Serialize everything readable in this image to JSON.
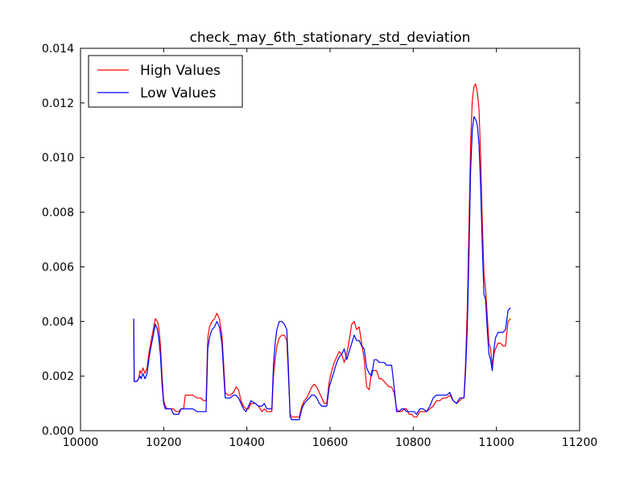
{
  "chart_data": {
    "type": "line",
    "title": "check_may_6th_stationary_std_deviation",
    "xlabel": "",
    "ylabel": "",
    "xlim": [
      10000,
      11200
    ],
    "ylim": [
      0.0,
      0.014
    ],
    "xticks": [
      "10000",
      "10200",
      "10400",
      "10600",
      "10800",
      "11000",
      "11200"
    ],
    "yticks": [
      "0.000",
      "0.002",
      "0.004",
      "0.006",
      "0.008",
      "0.010",
      "0.012",
      "0.014"
    ],
    "grid": false,
    "legend_position": "top-left",
    "series": [
      {
        "name": "High Values",
        "color": "#ff0000",
        "x": [
          10128,
          10129,
          10131,
          10135,
          10140,
          10143,
          10146,
          10150,
          10155,
          10160,
          10165,
          10170,
          10175,
          10180,
          10185,
          10188,
          10192,
          10196,
          10200,
          10204,
          10208,
          10212,
          10218,
          10224,
          10230,
          10236,
          10242,
          10248,
          10252,
          10260,
          10270,
          10280,
          10290,
          10296,
          10302,
          10306,
          10310,
          10316,
          10322,
          10328,
          10334,
          10340,
          10344,
          10348,
          10354,
          10360,
          10368,
          10374,
          10380,
          10386,
          10392,
          10398,
          10404,
          10410,
          10420,
          10428,
          10436,
          10442,
          10448,
          10454,
          10460,
          10464,
          10468,
          10472,
          10478,
          10484,
          10490,
          10496,
          10500,
          10504,
          10508,
          10514,
          10520,
          10526,
          10532,
          10538,
          10544,
          10550,
          10556,
          10562,
          10568,
          10574,
          10580,
          10586,
          10592,
          10598,
          10604,
          10610,
          10616,
          10622,
          10628,
          10634,
          10640,
          10646,
          10652,
          10658,
          10664,
          10670,
          10676,
          10682,
          10688,
          10694,
          10700,
          10706,
          10712,
          10718,
          10724,
          10730,
          10736,
          10742,
          10748,
          10754,
          10760,
          10766,
          10772,
          10778,
          10784,
          10790,
          10796,
          10802,
          10808,
          10816,
          10824,
          10832,
          10840,
          10848,
          10856,
          10864,
          10872,
          10880,
          10888,
          10896,
          10904,
          10912,
          10918,
          10922,
          10926,
          10930,
          10934,
          10938,
          10942,
          10946,
          10950,
          10954,
          10958,
          10962,
          10966,
          10970,
          10974,
          10978,
          10982,
          10986,
          10990,
          10994,
          10998,
          11004,
          11010,
          11016,
          11022,
          11028,
          11034
        ],
        "y": [
          0.0041,
          0.0018,
          0.0018,
          0.0018,
          0.0019,
          0.0022,
          0.0021,
          0.0023,
          0.0021,
          0.0023,
          0.0029,
          0.0033,
          0.0037,
          0.0041,
          0.004,
          0.0038,
          0.0032,
          0.002,
          0.0011,
          0.0009,
          0.0008,
          0.0008,
          0.0008,
          0.0008,
          0.0007,
          0.0007,
          0.0008,
          0.0008,
          0.0013,
          0.0013,
          0.0013,
          0.0012,
          0.0012,
          0.0011,
          0.0011,
          0.0034,
          0.0038,
          0.004,
          0.0041,
          0.0043,
          0.0041,
          0.0035,
          0.0025,
          0.0014,
          0.0013,
          0.0013,
          0.0014,
          0.0016,
          0.0015,
          0.0011,
          0.0009,
          0.0008,
          0.0008,
          0.001,
          0.001,
          0.0009,
          0.0007,
          0.0008,
          0.0007,
          0.0007,
          0.0007,
          0.002,
          0.0026,
          0.0031,
          0.0034,
          0.0035,
          0.0035,
          0.0033,
          0.002,
          0.0006,
          0.0005,
          0.0005,
          0.0005,
          0.0005,
          0.0009,
          0.0011,
          0.0012,
          0.0014,
          0.0016,
          0.0017,
          0.0016,
          0.0014,
          0.0012,
          0.001,
          0.001,
          0.0018,
          0.0022,
          0.0025,
          0.0027,
          0.0029,
          0.0028,
          0.0025,
          0.0028,
          0.0033,
          0.0039,
          0.004,
          0.0037,
          0.0038,
          0.0032,
          0.0026,
          0.0016,
          0.0015,
          0.0022,
          0.0022,
          0.0022,
          0.0019,
          0.0019,
          0.0018,
          0.0017,
          0.0016,
          0.0016,
          0.0014,
          0.0008,
          0.0007,
          0.0007,
          0.0008,
          0.0008,
          0.0006,
          0.0006,
          0.0005,
          0.0005,
          0.0007,
          0.0007,
          0.0007,
          0.0008,
          0.0009,
          0.0011,
          0.0011,
          0.0012,
          0.0012,
          0.0013,
          0.0011,
          0.001,
          0.0011,
          0.0012,
          0.0012,
          0.0025,
          0.0045,
          0.0075,
          0.0105,
          0.0121,
          0.0126,
          0.0127,
          0.0124,
          0.0118,
          0.0101,
          0.0077,
          0.0057,
          0.0052,
          0.0042,
          0.0032,
          0.003,
          0.0024,
          0.0028,
          0.003,
          0.0032,
          0.0032,
          0.0031,
          0.0031,
          0.004,
          0.0041
        ]
      },
      {
        "name": "Low Values",
        "color": "#0000ff",
        "x": [
          10128,
          10129,
          10131,
          10135,
          10140,
          10143,
          10146,
          10150,
          10155,
          10160,
          10165,
          10170,
          10175,
          10180,
          10185,
          10188,
          10192,
          10196,
          10200,
          10204,
          10208,
          10212,
          10218,
          10224,
          10230,
          10236,
          10242,
          10248,
          10252,
          10260,
          10270,
          10280,
          10290,
          10296,
          10302,
          10306,
          10310,
          10316,
          10322,
          10328,
          10334,
          10340,
          10344,
          10348,
          10354,
          10360,
          10368,
          10374,
          10380,
          10386,
          10392,
          10398,
          10404,
          10410,
          10420,
          10428,
          10436,
          10442,
          10448,
          10454,
          10460,
          10464,
          10468,
          10472,
          10478,
          10484,
          10490,
          10496,
          10500,
          10504,
          10508,
          10514,
          10520,
          10526,
          10532,
          10538,
          10544,
          10550,
          10556,
          10562,
          10568,
          10574,
          10580,
          10586,
          10592,
          10598,
          10604,
          10610,
          10616,
          10622,
          10628,
          10634,
          10640,
          10646,
          10652,
          10658,
          10664,
          10670,
          10676,
          10682,
          10688,
          10694,
          10700,
          10706,
          10712,
          10718,
          10724,
          10730,
          10736,
          10742,
          10748,
          10754,
          10760,
          10766,
          10772,
          10778,
          10784,
          10790,
          10796,
          10802,
          10808,
          10816,
          10824,
          10832,
          10840,
          10848,
          10856,
          10864,
          10872,
          10880,
          10888,
          10896,
          10904,
          10912,
          10918,
          10922,
          10926,
          10930,
          10934,
          10938,
          10942,
          10946,
          10950,
          10954,
          10958,
          10962,
          10966,
          10970,
          10974,
          10978,
          10982,
          10986,
          10990,
          10994,
          10998,
          11004,
          11010,
          11016,
          11022,
          11028,
          11034
        ],
        "y": [
          0.0041,
          0.0018,
          0.0018,
          0.0018,
          0.0019,
          0.002,
          0.0019,
          0.0021,
          0.0019,
          0.0021,
          0.0027,
          0.0031,
          0.0035,
          0.0039,
          0.0037,
          0.0034,
          0.0028,
          0.0017,
          0.001,
          0.0008,
          0.0008,
          0.0008,
          0.0008,
          0.0006,
          0.0006,
          0.0006,
          0.0008,
          0.0008,
          0.0008,
          0.0008,
          0.0008,
          0.0007,
          0.0007,
          0.0007,
          0.0007,
          0.003,
          0.0034,
          0.0037,
          0.0038,
          0.004,
          0.0038,
          0.0032,
          0.0022,
          0.0012,
          0.0012,
          0.0012,
          0.0013,
          0.0013,
          0.0012,
          0.001,
          0.0008,
          0.0007,
          0.0009,
          0.0011,
          0.001,
          0.0009,
          0.0009,
          0.001,
          0.0008,
          0.0008,
          0.0008,
          0.0024,
          0.0032,
          0.0037,
          0.004,
          0.004,
          0.0039,
          0.0037,
          0.0023,
          0.0005,
          0.0004,
          0.0004,
          0.0004,
          0.0004,
          0.0008,
          0.001,
          0.0011,
          0.0012,
          0.0013,
          0.0013,
          0.0012,
          0.001,
          0.0009,
          0.0009,
          0.0009,
          0.0016,
          0.0019,
          0.0022,
          0.0025,
          0.0027,
          0.0028,
          0.003,
          0.0026,
          0.0029,
          0.0032,
          0.0035,
          0.0033,
          0.0033,
          0.0031,
          0.003,
          0.0023,
          0.0021,
          0.002,
          0.0026,
          0.0026,
          0.0025,
          0.0025,
          0.0025,
          0.0024,
          0.0024,
          0.0024,
          0.0016,
          0.0007,
          0.0007,
          0.0008,
          0.0008,
          0.0007,
          0.0007,
          0.0007,
          0.0007,
          0.0006,
          0.0008,
          0.0008,
          0.0007,
          0.0009,
          0.0012,
          0.0013,
          0.0013,
          0.0013,
          0.0013,
          0.0014,
          0.0011,
          0.001,
          0.0012,
          0.0012,
          0.0012,
          0.0022,
          0.0038,
          0.0065,
          0.0095,
          0.011,
          0.0115,
          0.0114,
          0.0112,
          0.0105,
          0.009,
          0.0068,
          0.005,
          0.0048,
          0.0037,
          0.0028,
          0.0026,
          0.0022,
          0.003,
          0.0034,
          0.0036,
          0.0036,
          0.0036,
          0.0037,
          0.0044,
          0.0045
        ]
      }
    ]
  }
}
